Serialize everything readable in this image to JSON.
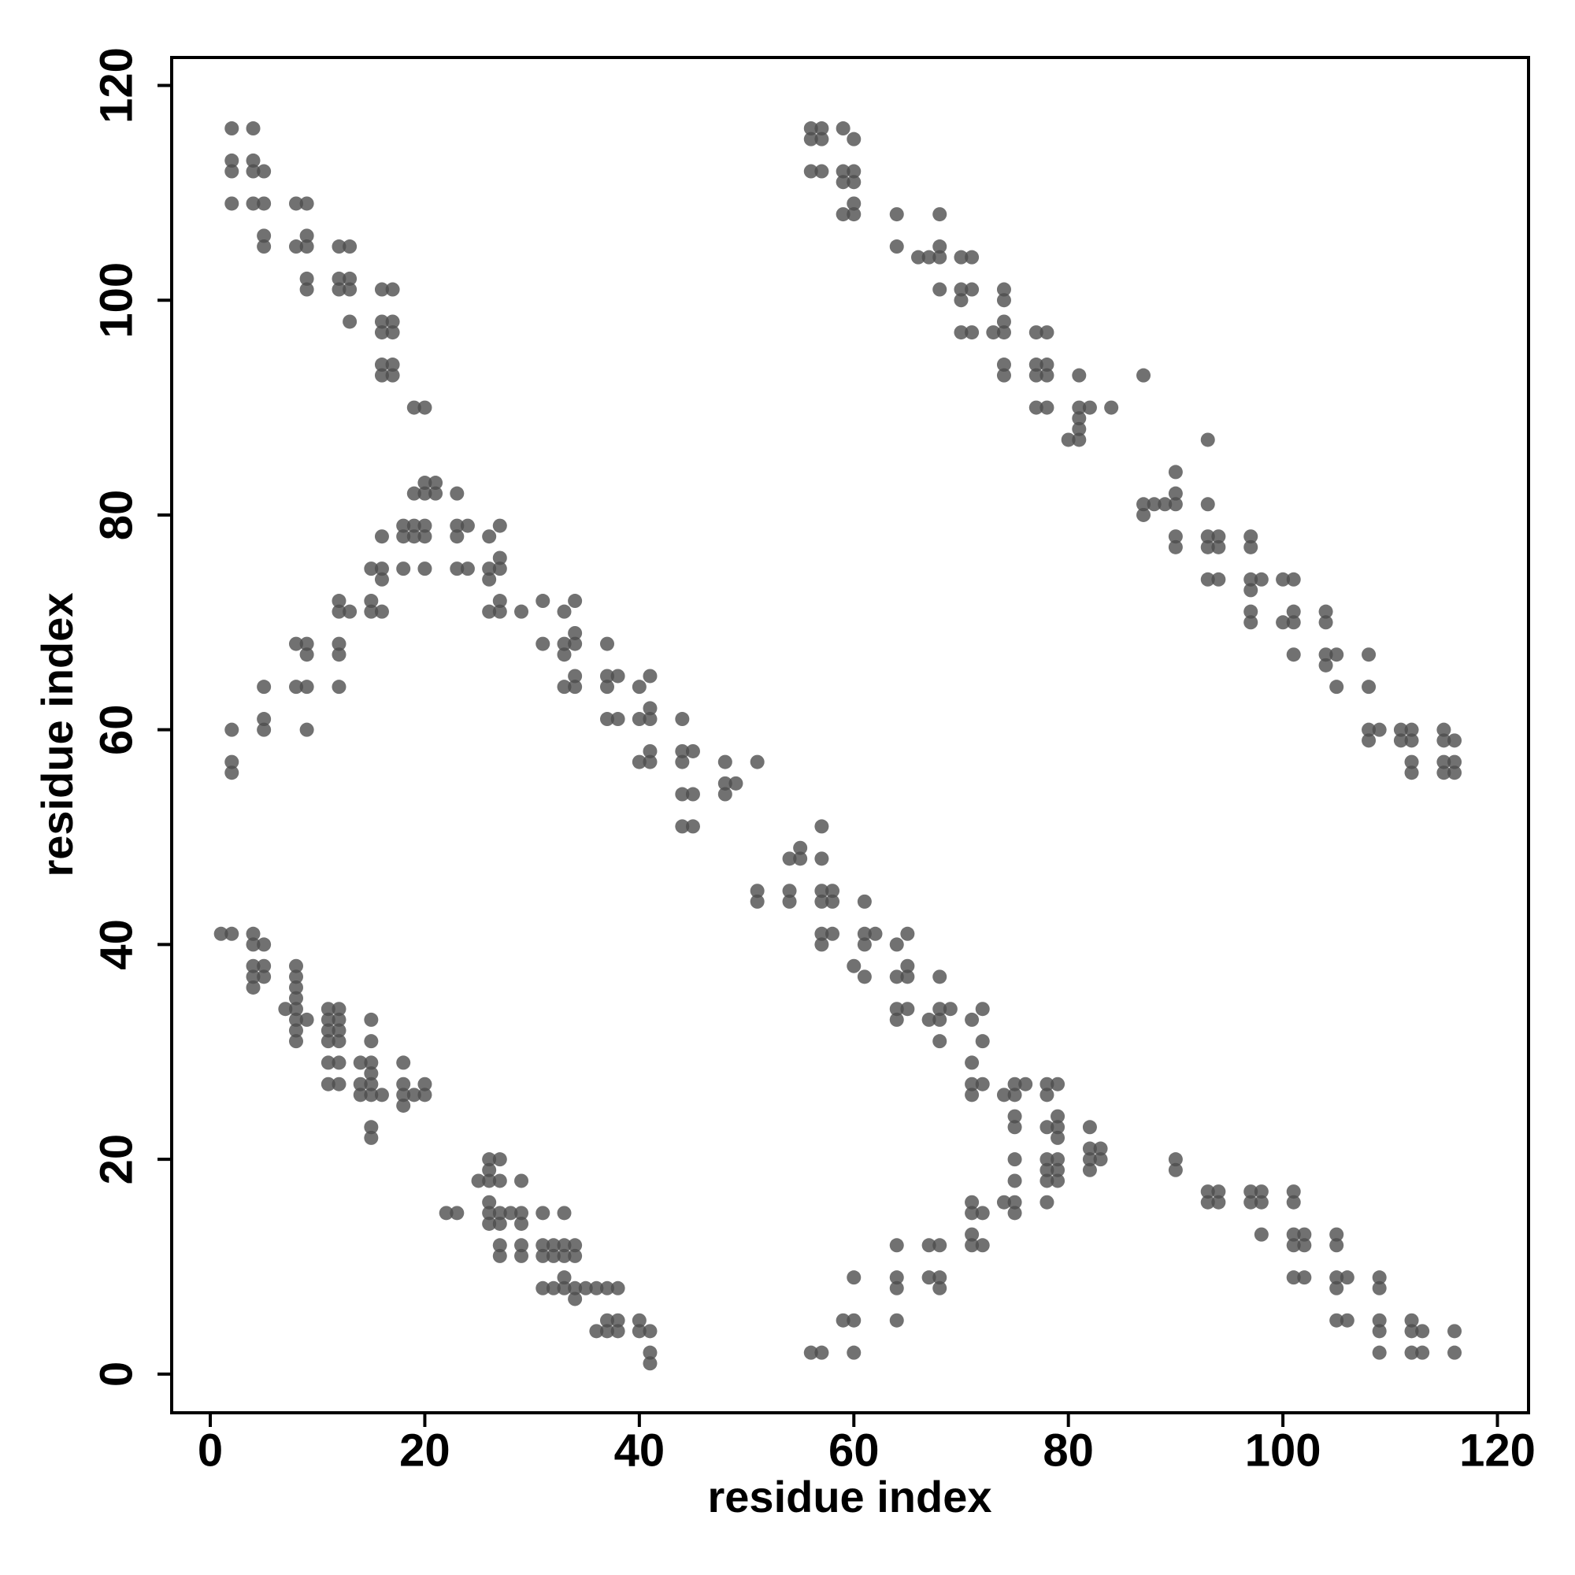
{
  "chart_data": {
    "type": "scatter",
    "x_label": "residue index",
    "y_label": "residue index",
    "xlim": [
      -3.6,
      122.9
    ],
    "ylim": [
      -3.6,
      122.6
    ],
    "xticks": [
      0,
      20,
      40,
      60,
      80,
      100,
      120
    ],
    "yticks": [
      0,
      20,
      40,
      60,
      80,
      100,
      120
    ],
    "color": "#4d4d4d",
    "opacity": 0.8,
    "x": [
      2,
      4,
      2,
      4,
      2,
      4,
      5,
      2,
      4,
      5,
      5,
      5,
      8,
      9,
      8,
      9,
      9,
      9,
      9,
      12,
      13,
      12,
      13,
      12,
      13,
      13,
      16,
      17,
      16,
      17,
      16,
      17,
      16,
      17,
      16,
      17,
      19,
      20,
      56,
      57,
      56,
      57,
      59,
      60,
      56,
      57,
      59,
      60,
      59,
      60,
      60,
      59,
      60,
      64,
      68,
      64,
      68,
      66,
      67,
      68,
      70,
      71,
      68,
      70,
      71,
      74,
      70,
      74,
      70,
      71,
      73,
      74,
      74,
      74,
      77,
      78,
      74,
      77,
      78,
      77,
      78,
      77,
      78,
      81,
      81,
      82,
      81,
      81,
      80,
      81,
      84,
      87,
      87,
      87,
      88,
      89,
      90,
      90,
      90,
      90,
      90,
      93,
      93,
      93,
      94,
      93,
      94,
      93,
      94,
      97,
      97,
      97,
      98,
      97,
      97,
      97,
      100,
      101,
      100,
      101,
      101,
      101,
      104,
      104,
      104,
      105,
      104,
      105,
      108,
      108,
      108,
      109,
      108,
      111,
      112,
      111,
      112,
      112,
      112,
      115,
      115,
      116,
      115,
      116,
      115,
      116,
      2,
      2,
      2,
      5,
      5,
      5,
      8,
      9,
      9,
      8,
      9,
      9,
      12,
      13,
      12,
      12,
      12,
      12,
      15,
      15,
      16,
      15,
      16,
      16,
      16,
      18,
      18,
      19,
      19,
      18,
      19,
      20,
      20,
      21,
      21,
      20,
      20,
      20,
      23,
      23,
      23,
      24,
      23,
      24,
      26,
      26,
      26,
      26,
      27,
      27,
      27,
      27,
      27,
      29,
      31,
      31,
      33,
      33,
      34,
      34,
      34,
      33,
      33,
      34,
      34,
      37,
      37,
      37,
      38,
      37,
      38,
      40,
      40,
      41,
      41,
      41,
      40,
      41,
      41,
      44,
      44,
      45,
      44,
      44,
      45,
      44,
      45,
      48,
      48,
      49,
      48,
      51,
      51,
      51,
      54,
      55,
      55,
      54,
      54,
      57,
      57,
      57,
      58,
      57,
      58,
      57,
      58,
      57,
      61,
      61,
      62,
      61,
      60,
      61,
      64,
      65,
      64,
      65,
      65,
      64,
      65,
      64,
      67,
      68,
      68,
      69,
      68,
      68,
      71,
      72,
      71,
      72,
      71,
      72,
      71,
      74,
      75,
      76,
      75,
      75,
      75,
      78,
      79,
      78,
      79,
      78,
      79,
      79,
      82,
      82,
      83,
      82,
      83,
      82,
      78,
      79,
      78,
      79,
      78,
      79,
      75,
      75,
      74,
      75,
      75,
      78,
      71,
      71,
      72,
      71,
      71,
      72,
      67,
      68,
      67,
      68,
      68,
      64,
      64,
      64,
      64,
      60,
      59,
      60,
      60,
      56,
      57,
      90,
      90,
      93,
      94,
      93,
      94,
      97,
      98,
      97,
      98,
      98,
      101,
      101,
      101,
      102,
      101,
      102,
      101,
      102,
      105,
      105,
      105,
      106,
      105,
      105,
      106,
      109,
      109,
      109,
      109,
      109,
      112,
      112,
      113,
      112,
      113,
      116,
      116,
      1,
      2,
      4,
      4,
      5,
      4,
      5,
      4,
      5,
      4,
      8,
      8,
      8,
      7,
      8,
      8,
      8,
      9,
      8,
      8,
      11,
      12,
      11,
      12,
      11,
      12,
      11,
      12,
      11,
      12,
      11,
      12,
      14,
      15,
      15,
      15,
      14,
      15,
      14,
      15,
      16,
      15,
      15,
      15,
      18,
      18,
      18,
      19,
      20,
      20,
      18,
      22,
      23,
      25,
      26,
      26,
      27,
      26,
      27,
      26,
      26,
      27,
      26,
      27,
      28,
      29,
      29,
      29,
      27,
      27,
      29,
      29,
      31,
      33,
      31,
      32,
      33,
      34,
      31,
      32,
      33,
      34,
      33,
      31,
      32,
      33,
      34,
      35,
      36,
      37,
      38,
      34,
      36,
      37,
      38,
      37,
      38,
      40,
      40,
      41,
      41,
      41
    ],
    "values": [
      116,
      116,
      113,
      113,
      112,
      112,
      112,
      109,
      109,
      109,
      106,
      105,
      109,
      109,
      105,
      105,
      106,
      102,
      101,
      105,
      105,
      102,
      102,
      101,
      101,
      98,
      101,
      101,
      98,
      98,
      97,
      97,
      94,
      94,
      93,
      93,
      90,
      90,
      116,
      116,
      115,
      115,
      116,
      115,
      112,
      112,
      112,
      112,
      111,
      111,
      109,
      108,
      108,
      108,
      108,
      105,
      105,
      104,
      104,
      104,
      104,
      104,
      101,
      101,
      101,
      101,
      100,
      100,
      97,
      97,
      97,
      97,
      98,
      94,
      97,
      97,
      93,
      94,
      94,
      93,
      93,
      90,
      90,
      93,
      90,
      90,
      89,
      88,
      87,
      87,
      90,
      93,
      81,
      80,
      81,
      81,
      81,
      82,
      84,
      78,
      77,
      87,
      81,
      78,
      78,
      77,
      77,
      74,
      74,
      78,
      77,
      74,
      74,
      73,
      71,
      70,
      74,
      74,
      70,
      70,
      71,
      67,
      71,
      70,
      67,
      67,
      66,
      64,
      67,
      64,
      60,
      60,
      59,
      60,
      60,
      59,
      59,
      57,
      56,
      60,
      59,
      59,
      57,
      57,
      56,
      56,
      60,
      57,
      56,
      64,
      61,
      60,
      68,
      68,
      67,
      64,
      64,
      60,
      72,
      71,
      71,
      68,
      67,
      64,
      72,
      71,
      71,
      75,
      75,
      74,
      78,
      79,
      78,
      79,
      78,
      75,
      82,
      82,
      83,
      83,
      82,
      79,
      78,
      75,
      82,
      79,
      78,
      79,
      75,
      75,
      78,
      75,
      74,
      71,
      79,
      76,
      75,
      72,
      71,
      71,
      72,
      68,
      71,
      68,
      68,
      69,
      72,
      67,
      64,
      64,
      65,
      68,
      65,
      64,
      65,
      61,
      61,
      64,
      61,
      61,
      62,
      65,
      57,
      57,
      58,
      61,
      58,
      58,
      57,
      54,
      54,
      51,
      51,
      57,
      55,
      55,
      54,
      57,
      45,
      44,
      48,
      48,
      49,
      45,
      44,
      51,
      48,
      45,
      45,
      44,
      44,
      41,
      41,
      40,
      44,
      41,
      41,
      40,
      38,
      37,
      40,
      41,
      37,
      37,
      38,
      34,
      34,
      33,
      33,
      37,
      34,
      34,
      33,
      31,
      33,
      34,
      29,
      31,
      27,
      27,
      26,
      26,
      27,
      27,
      26,
      24,
      23,
      27,
      27,
      26,
      24,
      23,
      23,
      22,
      23,
      21,
      21,
      20,
      20,
      19,
      20,
      20,
      19,
      19,
      18,
      18,
      20,
      18,
      16,
      16,
      15,
      16,
      16,
      15,
      15,
      13,
      12,
      12,
      12,
      12,
      9,
      9,
      8,
      12,
      9,
      8,
      5,
      9,
      5,
      5,
      2,
      2,
      2,
      20,
      19,
      17,
      17,
      16,
      16,
      17,
      17,
      16,
      16,
      13,
      17,
      16,
      13,
      13,
      12,
      12,
      9,
      9,
      13,
      12,
      9,
      9,
      8,
      5,
      5,
      9,
      8,
      5,
      4,
      2,
      5,
      4,
      4,
      2,
      2,
      4,
      2,
      41,
      41,
      41,
      40,
      40,
      38,
      38,
      37,
      37,
      36,
      38,
      37,
      36,
      34,
      34,
      35,
      33,
      33,
      32,
      31,
      34,
      34,
      33,
      33,
      32,
      32,
      31,
      31,
      29,
      29,
      27,
      27,
      29,
      29,
      31,
      33,
      27,
      27,
      26,
      26,
      26,
      28,
      23,
      22,
      29,
      27,
      26,
      26,
      27,
      26,
      25,
      15,
      15,
      18,
      18,
      20,
      20,
      19,
      18,
      16,
      15,
      15,
      14,
      14,
      15,
      15,
      18,
      14,
      12,
      11,
      12,
      11,
      15,
      15,
      12,
      12,
      12,
      12,
      11,
      11,
      11,
      11,
      9,
      8,
      8,
      8,
      8,
      8,
      8,
      8,
      8,
      7,
      4,
      4,
      4,
      5,
      5,
      5,
      4,
      4,
      2,
      1
    ]
  }
}
